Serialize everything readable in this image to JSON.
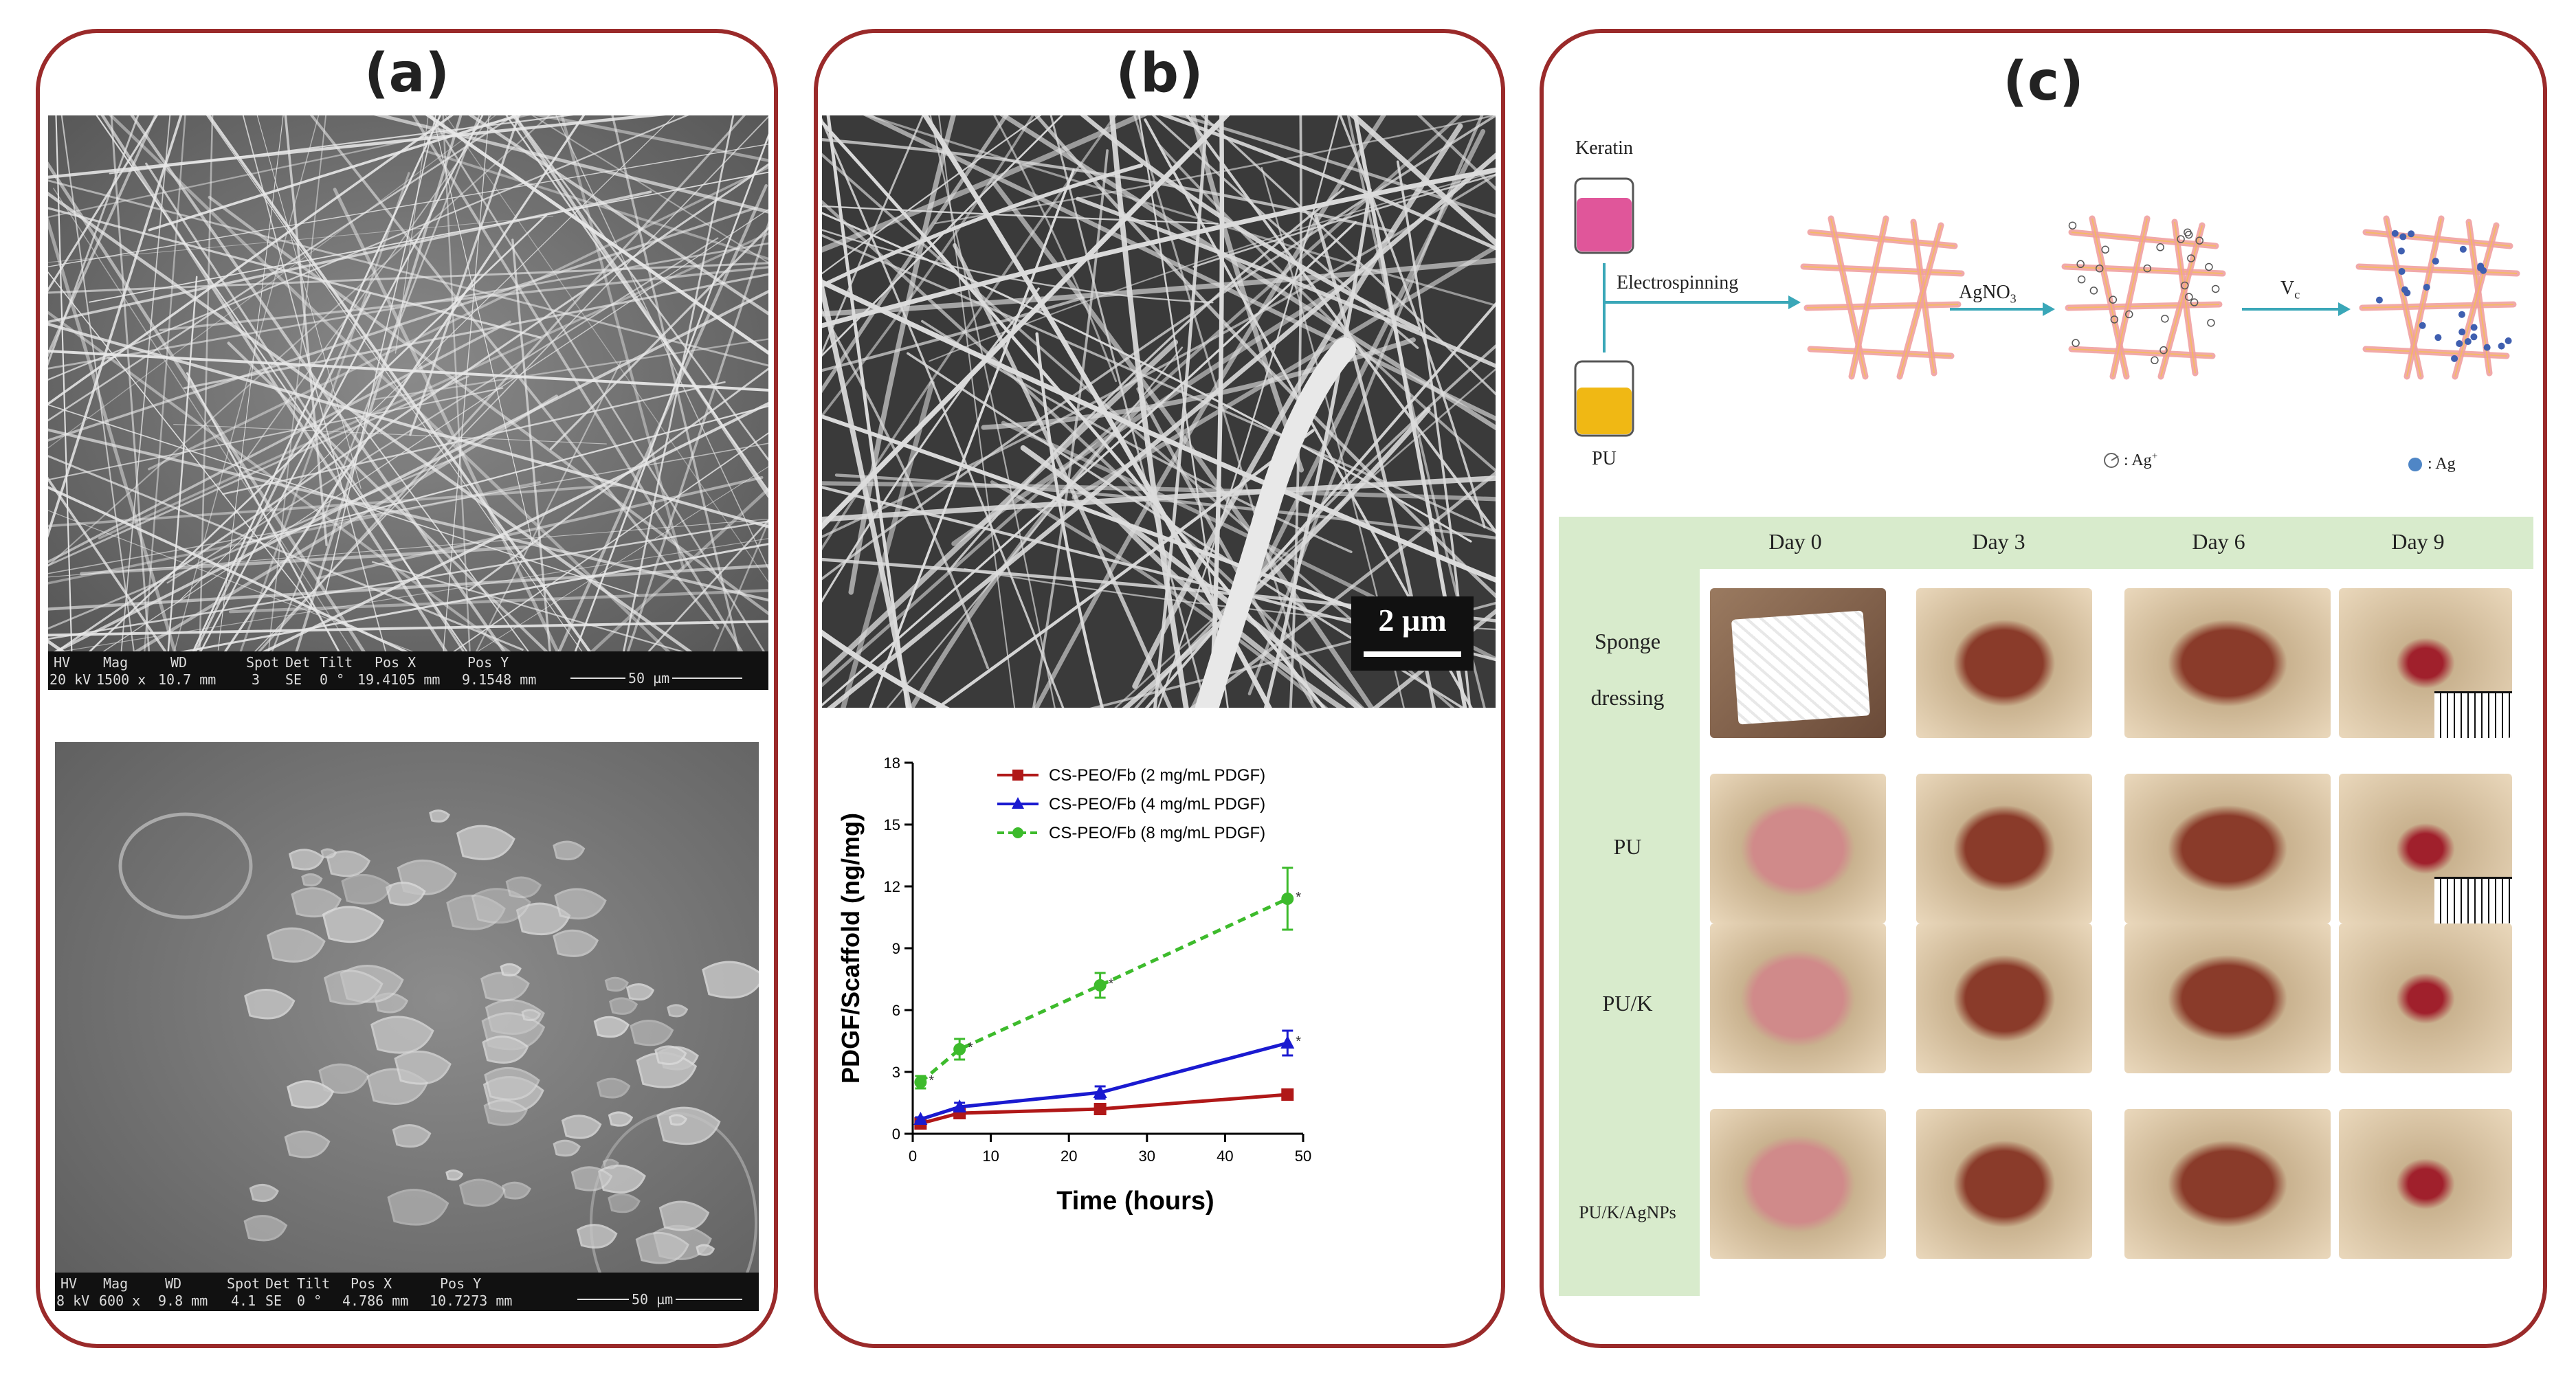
{
  "panel_a": {
    "label": "(a)",
    "sem_top": {
      "header": [
        "HV",
        "Mag",
        "WD",
        "Spot",
        "Det",
        "Tilt",
        "Pos X",
        "Pos Y"
      ],
      "values": [
        "20 kV",
        "1500 x",
        "10.7 mm",
        "3",
        "SE",
        "0 °",
        "19.4105 mm",
        "9.1548 mm"
      ],
      "scale": "50 µm"
    },
    "sem_bottom": {
      "header": [
        "HV",
        "Mag",
        "WD",
        "Spot",
        "Det",
        "Tilt",
        "Pos X",
        "Pos Y"
      ],
      "values": [
        "8 kV",
        "600 x",
        "9.8 mm",
        "4.1",
        "SE",
        "0 °",
        "4.786 mm",
        "10.7273 mm"
      ],
      "scale": "50 µm"
    }
  },
  "panel_b": {
    "label": "(b)",
    "sem_scale": "2 µm",
    "chart_data": {
      "type": "line",
      "xlabel": "Time (hours)",
      "ylabel": "PDGF/Scaffold (ng/mg)",
      "xlim": [
        0,
        50
      ],
      "ylim": [
        0,
        18
      ],
      "xticks": [
        "0",
        "10",
        "20",
        "30",
        "40",
        "50"
      ],
      "yticks": [
        "0",
        "3",
        "6",
        "9",
        "12",
        "15",
        "18"
      ],
      "legend_position": "top-left",
      "x": [
        1,
        6,
        24,
        48
      ],
      "series": [
        {
          "name": "CS-PEO/Fb (2 mg/mL PDGF)",
          "color": "#b01818",
          "marker": "square",
          "dash": "solid",
          "values": [
            0.5,
            1.0,
            1.2,
            1.9
          ],
          "errors": [
            0.1,
            0.1,
            0.1,
            0.2
          ]
        },
        {
          "name": "CS-PEO/Fb (4 mg/mL PDGF)",
          "color": "#1a1ad0",
          "marker": "triangle",
          "dash": "solid",
          "values": [
            0.7,
            1.3,
            2.0,
            4.4
          ],
          "errors": [
            0.1,
            0.2,
            0.3,
            0.6
          ]
        },
        {
          "name": "CS-PEO/Fb (8 mg/mL PDGF)",
          "color": "#3dbb2c",
          "marker": "circle",
          "dash": "dashed",
          "values": [
            2.5,
            4.1,
            7.2,
            11.4
          ],
          "errors": [
            0.3,
            0.5,
            0.6,
            1.5
          ]
        }
      ],
      "annotations": [
        "*",
        "*",
        "*",
        "*",
        "*"
      ]
    }
  },
  "panel_c": {
    "label": "(c)",
    "scheme": {
      "keratin": "Keratin",
      "pu": "PU",
      "step1": "Electrospinning",
      "step2_main": "AgNO",
      "step2_sub": "3",
      "step3_main": "V",
      "step3_sub": "c",
      "legend_ion": ": Ag",
      "legend_ion_sup": "+",
      "legend_np": ": Ag",
      "colors": {
        "keratin": "#e0569a",
        "pu": "#f0b814",
        "arrow": "#3aa7b8",
        "fiber": "#f0a0a0",
        "particle": "#4060c0"
      }
    },
    "table": {
      "days": [
        "Day 0",
        "Day 3",
        "Day 6",
        "Day 9"
      ],
      "rows": [
        {
          "line1": "Sponge",
          "line2": "dressing"
        },
        {
          "line1": "PU",
          "line2": ""
        },
        {
          "line1": "PU/K",
          "line2": ""
        },
        {
          "line1": "PU/K/AgNPs",
          "line2": ""
        }
      ],
      "header_bg": "#d8ebcc"
    }
  }
}
